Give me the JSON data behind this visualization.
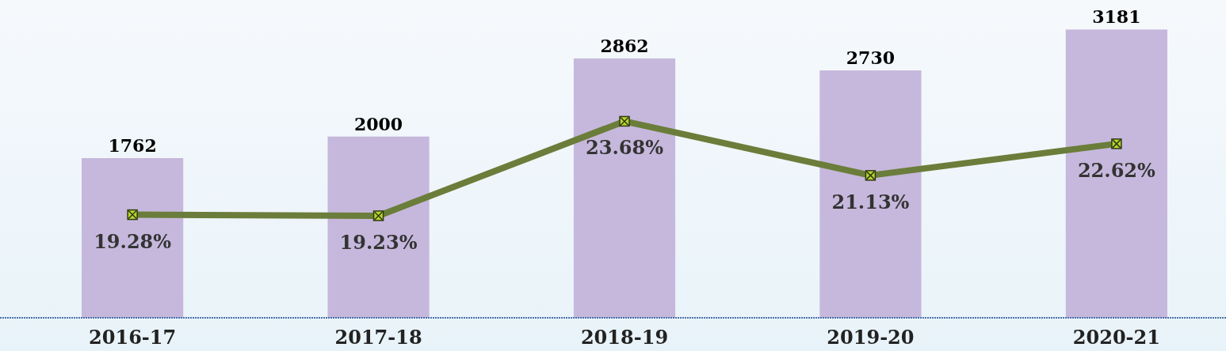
{
  "chart_data": {
    "type": "bar",
    "categories": [
      "2016-17",
      "2017-18",
      "2018-19",
      "2019-20",
      "2020-21"
    ],
    "data_labels": true,
    "marker": "square",
    "series": [
      {
        "color": "#c6b8dc",
        "values": [
          1762,
          2000,
          2862,
          2730,
          3181
        ]
      },
      {
        "type": "line",
        "axis": "y2",
        "color": "#6b7d3a",
        "values": [
          19.28,
          19.23,
          23.68,
          21.13,
          22.62
        ],
        "value_labels": [
          "19.28%",
          "19.23%",
          "23.68%",
          "21.13%",
          "22.62%"
        ]
      }
    ]
  }
}
